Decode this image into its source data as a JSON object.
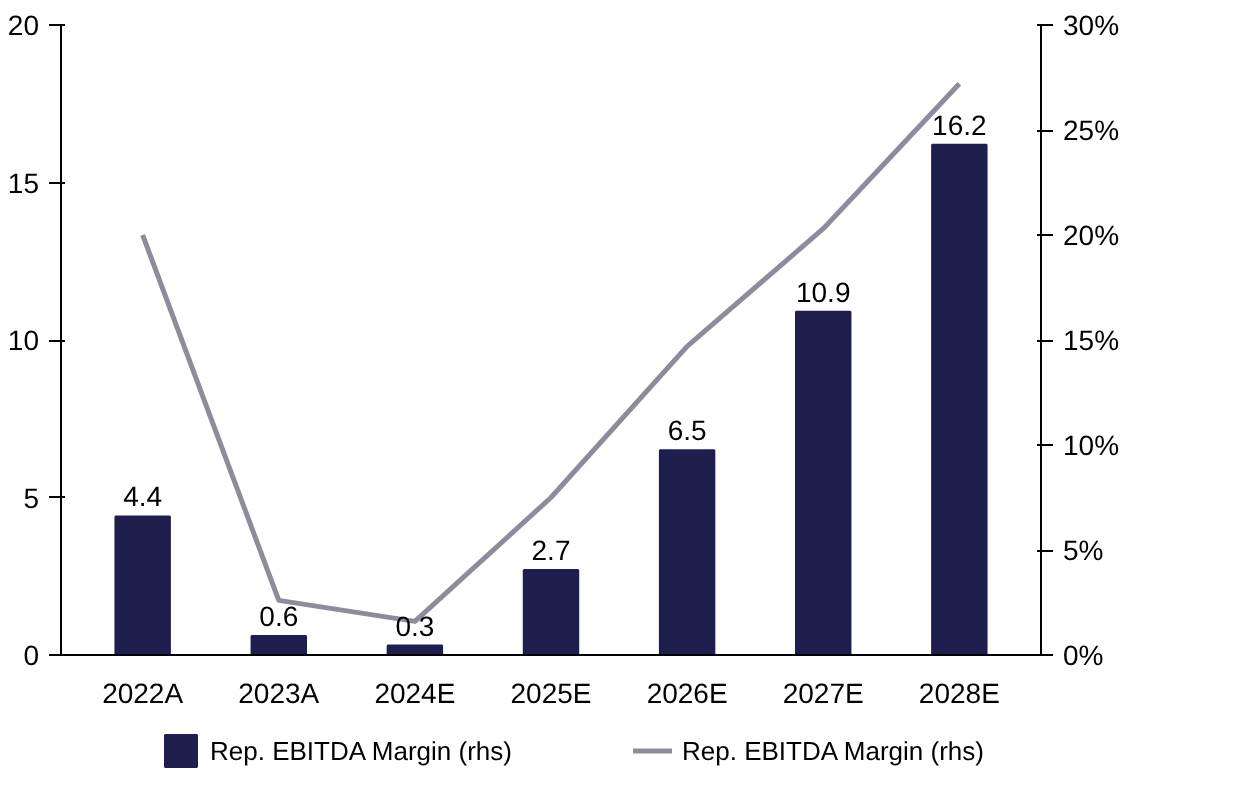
{
  "chart_data": {
    "type": "bar",
    "categories": [
      "2022A",
      "2023A",
      "2024E",
      "2025E",
      "2026E",
      "2027E",
      "2028E"
    ],
    "series": [
      {
        "name": "Rep. EBITDA Margin (rhs)",
        "color": "#1f1f4f",
        "values": [
          4.4,
          0.6,
          0.3,
          2.7,
          6.5,
          10.9,
          16.2
        ],
        "value_labels": [
          "4.4",
          "0.6",
          "0.3",
          "2.7",
          "6.5",
          "10.9",
          "16.2"
        ]
      },
      {
        "name": "Rep. EBITDA Margin (rhs)",
        "type": "line",
        "axis": "y2",
        "color": "#8c8c9c",
        "values": [
          20,
          2.6,
          1.6,
          7.5,
          14.7,
          20.3,
          27.2
        ]
      }
    ],
    "ylim": [
      0,
      20
    ],
    "yticks": [
      0,
      5,
      10,
      15,
      20
    ],
    "y2lim": [
      0,
      30
    ],
    "y2ticks": [
      {
        "value": 0,
        "label": "0%"
      },
      {
        "value": 5,
        "label": "5%"
      },
      {
        "value": 10,
        "label": "10%"
      },
      {
        "value": 15,
        "label": "15%"
      },
      {
        "value": 20,
        "label": "20%"
      },
      {
        "value": 25,
        "label": "25%"
      },
      {
        "value": 30,
        "label": "30%"
      }
    ],
    "grid": false,
    "legend": "bottom"
  }
}
